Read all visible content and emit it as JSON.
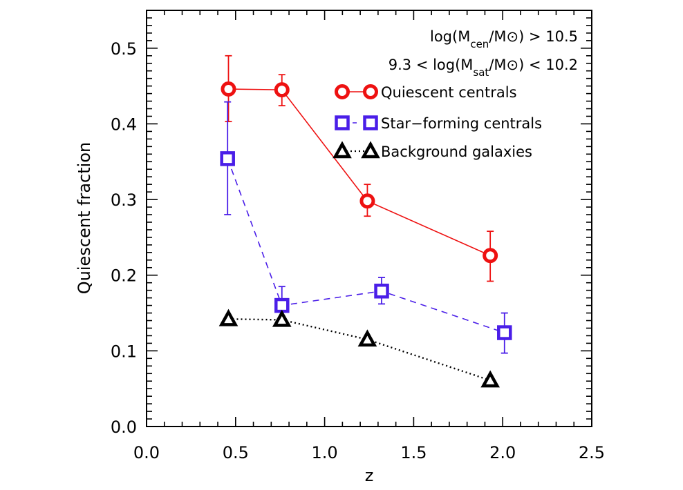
{
  "chart_data": {
    "type": "scatter",
    "title": "",
    "xlabel": "z",
    "ylabel": "Quiescent fraction",
    "xlim": [
      0.0,
      2.5
    ],
    "ylim": [
      0.0,
      0.55
    ],
    "grid": false,
    "x_ticks": [
      "0.0",
      "0.5",
      "1.0",
      "1.5",
      "2.0",
      "2.5"
    ],
    "x_tick_values": [
      0.0,
      0.5,
      1.0,
      1.5,
      2.0,
      2.5
    ],
    "x_minor_step": 0.1,
    "y_ticks": [
      "0.0",
      "0.1",
      "0.2",
      "0.3",
      "0.4",
      "0.5"
    ],
    "y_tick_values": [
      0.0,
      0.1,
      0.2,
      0.3,
      0.4,
      0.5
    ],
    "y_minor_step": 0.01,
    "annotations": {
      "line1": {
        "prefix": "log(M",
        "sub": "cen",
        "suffix": "/M⊙) > 10.5"
      },
      "line2": {
        "prefix": "9.3 < log(M",
        "sub": "sat",
        "suffix": "/M⊙) < 10.2"
      }
    },
    "legend_position": "top-right",
    "series": [
      {
        "name": "Quiescent centrals",
        "color": "#ee1111",
        "marker": "circle",
        "linestyle": "solid",
        "x": [
          0.46,
          0.76,
          1.24,
          1.93
        ],
        "y": [
          0.446,
          0.445,
          0.298,
          0.226
        ],
        "yerr_low": [
          0.403,
          0.424,
          0.278,
          0.192
        ],
        "yerr_high": [
          0.49,
          0.465,
          0.32,
          0.258
        ]
      },
      {
        "name": "Star−forming centrals",
        "color": "#4a1ee8",
        "marker": "square",
        "linestyle": "dashed",
        "x": [
          0.455,
          0.76,
          1.32,
          2.01
        ],
        "y": [
          0.354,
          0.16,
          0.179,
          0.124
        ],
        "yerr_low": [
          0.28,
          0.135,
          0.162,
          0.097
        ],
        "yerr_high": [
          0.429,
          0.185,
          0.197,
          0.15
        ]
      },
      {
        "name": "Background galaxies",
        "color": "#000000",
        "marker": "triangle",
        "linestyle": "dotted",
        "x": [
          0.46,
          0.76,
          1.24,
          1.93
        ],
        "y": [
          0.142,
          0.141,
          0.115,
          0.061
        ]
      }
    ]
  }
}
